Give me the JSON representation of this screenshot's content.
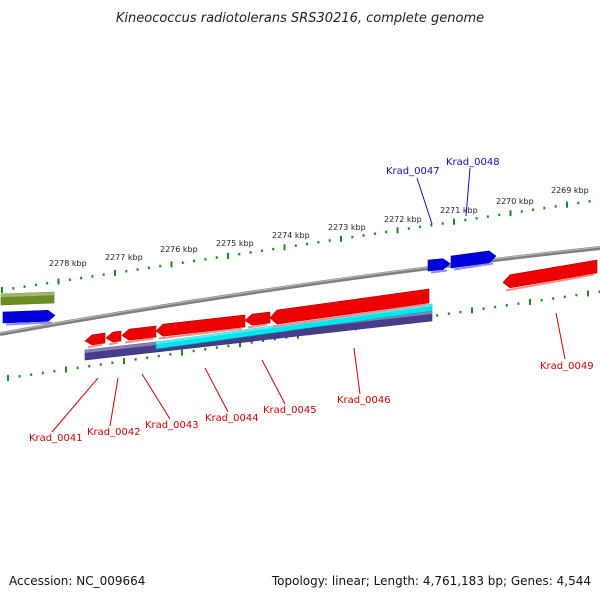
{
  "title": "Kineococcus radiotolerans SRS30216, complete genome",
  "footer": {
    "accession": "Accession: NC_009664",
    "summary": "Topology: linear; Length: 4,761,183 bp; Genes: 4,544"
  },
  "colors": {
    "backbone": "#808080",
    "forward_gene": "#0000dd",
    "reverse_gene": "#ee0000",
    "other_feature": "#6b8e23",
    "cds_feature": "#00e5ee",
    "region_feature": "#483d8b",
    "scale_ticks": "#1a8a1a",
    "forward_label": "#1010b0",
    "reverse_label": "#cc0000"
  },
  "kbp_labels": [
    "2278 kbp",
    "2277 kbp",
    "2276 kbp",
    "2275 kbp",
    "2274 kbp",
    "2273 kbp",
    "2272 kbp",
    "2271 kbp",
    "2270 kbp",
    "2269 kbp"
  ],
  "forward_genes": [
    "Krad_0047",
    "Krad_0048"
  ],
  "reverse_genes": [
    "Krad_0041",
    "Krad_0042",
    "Krad_0043",
    "Krad_0044",
    "Krad_0045",
    "Krad_0046",
    "Krad_0049"
  ]
}
